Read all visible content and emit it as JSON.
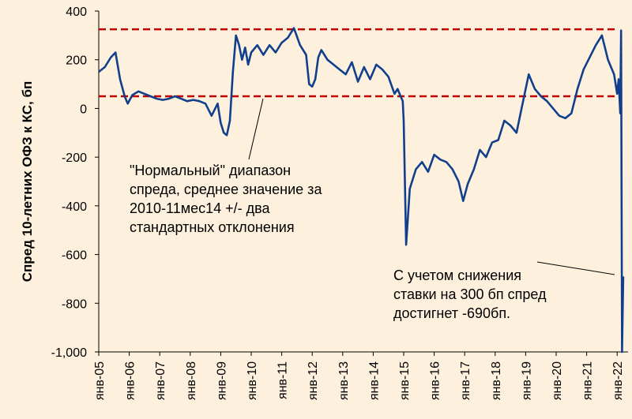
{
  "chart_data": {
    "type": "line",
    "title": "",
    "xlabel": "",
    "ylabel": "Спред 10-летних ОФЗ к КС, бп",
    "ylim": [
      -1000,
      400
    ],
    "yticks": [
      400,
      200,
      0,
      -200,
      -400,
      -600,
      -800,
      -1000
    ],
    "ytick_labels": [
      "400",
      "200",
      "0",
      "-200",
      "-400",
      "-600",
      "-800",
      "-1,000"
    ],
    "xticks": [
      "янв-05",
      "янв-06",
      "янв-07",
      "янв-08",
      "янв-09",
      "янв-10",
      "янв-11",
      "янв-12",
      "янв-13",
      "янв-14",
      "янв-15",
      "янв-16",
      "янв-17",
      "янв-18",
      "янв-19",
      "янв-20",
      "янв-21",
      "янв-22"
    ],
    "x_range": [
      2005.0,
      2022.0
    ],
    "grid": false,
    "series": [
      {
        "color": "#123f8c",
        "x": [
          2005.0,
          2005.2,
          2005.4,
          2005.55,
          2005.7,
          2005.85,
          2005.95,
          2006.1,
          2006.3,
          2006.5,
          2006.7,
          2006.9,
          2007.1,
          2007.3,
          2007.5,
          2007.7,
          2007.9,
          2008.1,
          2008.3,
          2008.5,
          2008.7,
          2008.9,
          2009.0,
          2009.1,
          2009.2,
          2009.3,
          2009.4,
          2009.5,
          2009.6,
          2009.7,
          2009.8,
          2009.9,
          2010.0,
          2010.2,
          2010.4,
          2010.6,
          2010.8,
          2011.0,
          2011.2,
          2011.4,
          2011.6,
          2011.8,
          2011.9,
          2012.0,
          2012.1,
          2012.2,
          2012.3,
          2012.5,
          2012.7,
          2012.9,
          2013.1,
          2013.3,
          2013.5,
          2013.7,
          2013.9,
          2014.1,
          2014.3,
          2014.5,
          2014.7,
          2014.8,
          2014.9,
          2014.97,
          2015.0,
          2015.08,
          2015.2,
          2015.4,
          2015.6,
          2015.8,
          2016.0,
          2016.2,
          2016.4,
          2016.6,
          2016.8,
          2016.95,
          2017.1,
          2017.3,
          2017.5,
          2017.7,
          2017.9,
          2018.1,
          2018.3,
          2018.5,
          2018.7,
          2018.9,
          2019.1,
          2019.3,
          2019.5,
          2019.7,
          2019.9,
          2020.1,
          2020.3,
          2020.5,
          2020.7,
          2020.9,
          2021.1,
          2021.3,
          2021.5,
          2021.7,
          2021.9,
          2022.0,
          2022.05,
          2022.1,
          2022.13,
          2022.16,
          2022.2
        ],
        "y": [
          150,
          170,
          210,
          230,
          120,
          50,
          20,
          55,
          70,
          60,
          50,
          40,
          35,
          40,
          50,
          40,
          30,
          35,
          30,
          20,
          -30,
          20,
          -60,
          -100,
          -110,
          -50,
          150,
          300,
          260,
          200,
          250,
          180,
          230,
          260,
          220,
          260,
          230,
          270,
          290,
          330,
          260,
          220,
          100,
          90,
          120,
          210,
          240,
          200,
          180,
          160,
          140,
          190,
          110,
          170,
          120,
          180,
          160,
          130,
          60,
          80,
          50,
          30,
          -50,
          -560,
          -330,
          -250,
          -220,
          -260,
          -190,
          -210,
          -220,
          -250,
          -300,
          -380,
          -310,
          -250,
          -170,
          -200,
          -140,
          -130,
          -50,
          -70,
          -100,
          20,
          140,
          80,
          50,
          30,
          0,
          -30,
          -40,
          -20,
          80,
          160,
          210,
          260,
          300,
          200,
          140,
          60,
          120,
          -20,
          320,
          -1000,
          -690
        ]
      }
    ],
    "reference_lines": [
      {
        "y": 325,
        "style": "dashed",
        "color": "#c00000"
      },
      {
        "y": 50,
        "style": "dashed",
        "color": "#c00000"
      }
    ],
    "annotations": [
      {
        "lines": [
          "\"Нормальный\" диапазон",
          "спреда, среднее значение за",
          "2010-11мес14 +/- два",
          "стандартных отклонения"
        ]
      },
      {
        "lines": [
          "С учетом снижения",
          "ставки на 300 бп спред",
          "достигнет -690бп."
        ]
      }
    ]
  }
}
